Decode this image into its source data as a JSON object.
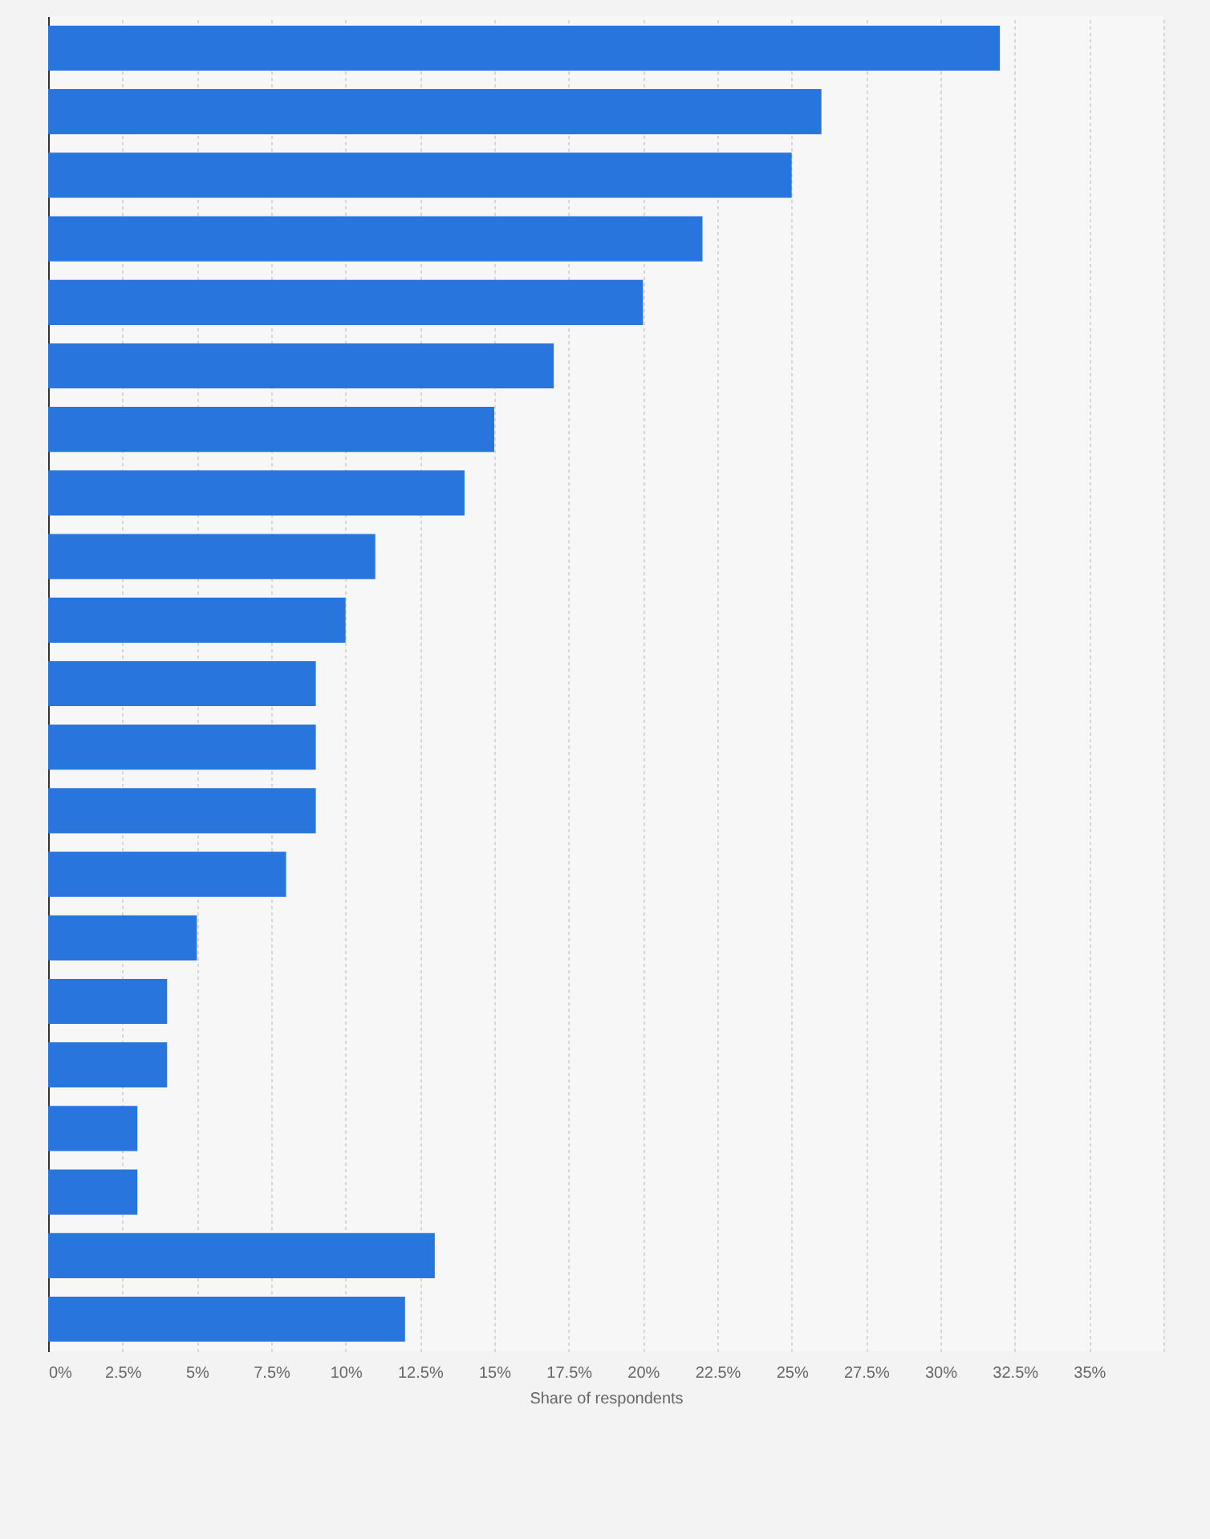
{
  "chart_data": {
    "type": "bar",
    "orientation": "horizontal",
    "categories": [
      null,
      null,
      null,
      null,
      null,
      null,
      null,
      null,
      null,
      null,
      null,
      null,
      null,
      null,
      null,
      null,
      null,
      null,
      null,
      null,
      null
    ],
    "values": [
      32,
      26,
      25,
      22,
      20,
      17,
      15,
      14,
      11,
      10,
      9,
      9,
      9,
      8,
      5,
      4,
      4,
      3,
      3,
      13,
      12
    ],
    "color": "#2876dd",
    "xlabel": "Share of respondents",
    "xlim": [
      0,
      37.5
    ],
    "xticks": [
      {
        "value": 0,
        "label": "0%"
      },
      {
        "value": 2.5,
        "label": "2.5%"
      },
      {
        "value": 5,
        "label": "5%"
      },
      {
        "value": 7.5,
        "label": "7.5%"
      },
      {
        "value": 10,
        "label": "10%"
      },
      {
        "value": 12.5,
        "label": "12.5%"
      },
      {
        "value": 15,
        "label": "15%"
      },
      {
        "value": 17.5,
        "label": "17.5%"
      },
      {
        "value": 20,
        "label": "20%"
      },
      {
        "value": 22.5,
        "label": "22.5%"
      },
      {
        "value": 25,
        "label": "25%"
      },
      {
        "value": 27.5,
        "label": "27.5%"
      },
      {
        "value": 30,
        "label": "30%"
      },
      {
        "value": 32.5,
        "label": "32.5%"
      },
      {
        "value": 35,
        "label": "35%"
      },
      {
        "value": 37.5,
        "label": null
      }
    ],
    "grid": "x"
  }
}
